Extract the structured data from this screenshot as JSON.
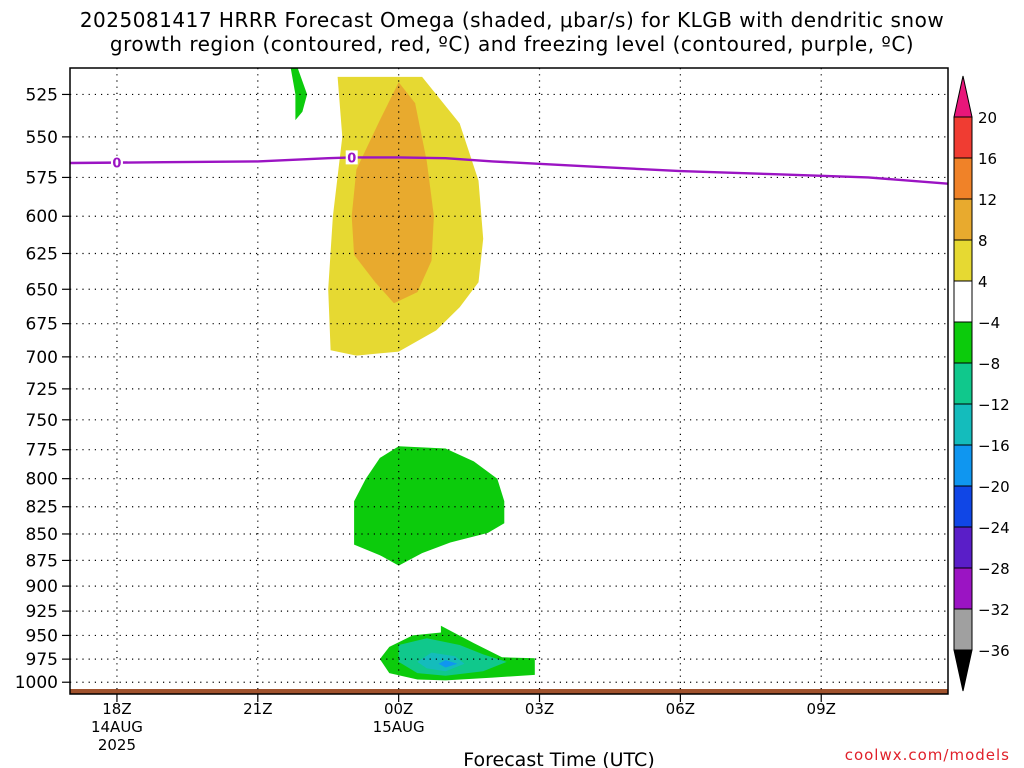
{
  "title": {
    "line1": "2025081417 HRRR Forecast Omega (shaded, μbar/s) for KLGB with dendritic snow",
    "line2": "growth region (contoured, red, ºC) and freezing level (contoured, purple, ºC)"
  },
  "credit": "coolwx.com/models",
  "chart_data": {
    "type": "contour",
    "title": "2025081417 HRRR Forecast Omega (shaded, μbar/s) for KLGB with dendritic snow growth region (contoured, red, ºC) and freezing level (contoured, purple, ºC)",
    "xlabel": "Forecast Time (UTC)",
    "ylabel": "",
    "x_ticks": [
      {
        "hour": 0,
        "label": "18Z",
        "sub1": "14AUG",
        "sub2": "2025"
      },
      {
        "hour": 3,
        "label": "21Z",
        "sub1": "",
        "sub2": ""
      },
      {
        "hour": 6,
        "label": "00Z",
        "sub1": "15AUG",
        "sub2": ""
      },
      {
        "hour": 9,
        "label": "03Z",
        "sub1": "",
        "sub2": ""
      },
      {
        "hour": 12,
        "label": "06Z",
        "sub1": "",
        "sub2": ""
      },
      {
        "hour": 15,
        "label": "09Z",
        "sub1": "",
        "sub2": ""
      }
    ],
    "xlim_hours": [
      -1,
      17.7
    ],
    "y_ticks": [
      525,
      550,
      575,
      600,
      625,
      650,
      675,
      700,
      725,
      750,
      775,
      800,
      825,
      850,
      875,
      900,
      925,
      950,
      975,
      1000
    ],
    "ylim_hPa": [
      510,
      1013
    ],
    "y_scale": "log",
    "grid": true,
    "colorbar": {
      "labels": [
        "20",
        "16",
        "12",
        "8",
        "4",
        "−4",
        "−8",
        "−12",
        "−16",
        "−20",
        "−24",
        "−28",
        "−32",
        "−36"
      ],
      "colors": [
        "#e8167a",
        "#f03c32",
        "#f08228",
        "#e8aa2e",
        "#e6d932",
        "#ffffff",
        "#0ccb0c",
        "#10c88c",
        "#14bcbc",
        "#0f96f0",
        "#1046e6",
        "#5a1ec8",
        "#9b14c3",
        "#a0a0a0",
        "#000000"
      ]
    },
    "omega_regions": [
      {
        "level": "4 to 8",
        "color": "#e6d932",
        "points": [
          [
            4.7,
            515
          ],
          [
            6.5,
            515
          ],
          [
            7.3,
            542
          ],
          [
            7.7,
            577
          ],
          [
            7.8,
            615
          ],
          [
            7.7,
            645
          ],
          [
            7.3,
            663
          ],
          [
            6.8,
            680
          ],
          [
            6.0,
            696
          ],
          [
            5.1,
            699
          ],
          [
            4.55,
            695
          ],
          [
            4.5,
            650
          ],
          [
            4.6,
            600
          ],
          [
            4.8,
            550
          ]
        ]
      },
      {
        "level": "8 to 12",
        "color": "#e8aa2e",
        "points": [
          [
            6.0,
            518
          ],
          [
            6.35,
            530
          ],
          [
            6.6,
            565
          ],
          [
            6.75,
            600
          ],
          [
            6.7,
            630
          ],
          [
            6.4,
            652
          ],
          [
            5.9,
            660
          ],
          [
            5.5,
            645
          ],
          [
            5.05,
            626
          ],
          [
            5.0,
            600
          ],
          [
            5.1,
            570
          ],
          [
            5.6,
            540
          ]
        ]
      },
      {
        "level": "-8 to -4",
        "color": "#0ccb0c",
        "points": [
          [
            3.7,
            510
          ],
          [
            3.85,
            510
          ],
          [
            4.05,
            525
          ],
          [
            3.95,
            535
          ],
          [
            3.8,
            540
          ],
          [
            3.8,
            525
          ]
        ]
      },
      {
        "level": "-8 to -4",
        "color": "#0ccb0c",
        "points": [
          [
            6.0,
            772
          ],
          [
            7.0,
            774
          ],
          [
            7.6,
            785
          ],
          [
            8.1,
            800
          ],
          [
            8.25,
            820
          ],
          [
            8.25,
            840
          ],
          [
            7.9,
            849
          ],
          [
            7.1,
            858
          ],
          [
            6.5,
            868
          ],
          [
            6.0,
            880
          ],
          [
            5.6,
            870
          ],
          [
            5.05,
            860
          ],
          [
            5.05,
            820
          ],
          [
            5.3,
            800
          ],
          [
            5.6,
            782
          ]
        ]
      },
      {
        "level": "-8 to -4",
        "color": "#0ccb0c",
        "points": [
          [
            6.9,
            940
          ],
          [
            7.6,
            958
          ],
          [
            8.2,
            973
          ],
          [
            8.9,
            974
          ],
          [
            8.9,
            992
          ],
          [
            8.0,
            995
          ],
          [
            7.0,
            998
          ],
          [
            6.4,
            997
          ],
          [
            5.8,
            990
          ],
          [
            5.6,
            975
          ],
          [
            5.8,
            962
          ],
          [
            6.3,
            950
          ],
          [
            6.9,
            947
          ]
        ]
      },
      {
        "level": "-12 to -8",
        "color": "#10c88c",
        "points": [
          [
            6.0,
            960
          ],
          [
            6.6,
            953
          ],
          [
            7.3,
            960
          ],
          [
            7.8,
            970
          ],
          [
            8.3,
            978
          ],
          [
            7.8,
            988
          ],
          [
            7.0,
            993
          ],
          [
            6.4,
            990
          ],
          [
            6.0,
            978
          ]
        ]
      },
      {
        "level": "-16 to -12",
        "color": "#14bcbc",
        "points": [
          [
            6.7,
            968
          ],
          [
            7.2,
            972
          ],
          [
            7.4,
            980
          ],
          [
            7.0,
            988
          ],
          [
            6.6,
            985
          ],
          [
            6.4,
            978
          ]
        ]
      },
      {
        "level": "-20 to -16",
        "color": "#0f96f0",
        "points": [
          [
            7.0,
            976
          ],
          [
            7.25,
            980
          ],
          [
            7.0,
            984
          ],
          [
            6.85,
            980
          ]
        ]
      }
    ],
    "freezing_level": {
      "label": "0",
      "label_hours": [
        0,
        5
      ],
      "points": [
        [
          -1,
          566
        ],
        [
          1,
          565.5
        ],
        [
          3,
          565
        ],
        [
          4.5,
          563
        ],
        [
          5,
          562.5
        ],
        [
          6,
          562.5
        ],
        [
          7,
          563
        ],
        [
          8,
          565
        ],
        [
          10,
          568
        ],
        [
          12,
          571
        ],
        [
          14,
          573
        ],
        [
          16,
          575
        ],
        [
          17.7,
          579
        ]
      ]
    },
    "terrain_hPa": 1013
  }
}
